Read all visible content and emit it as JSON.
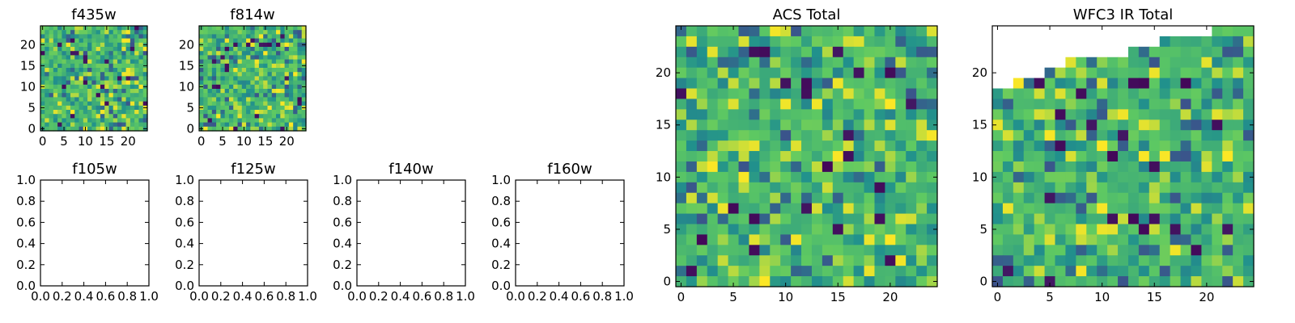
{
  "colormap": [
    "#440154",
    "#3b528b",
    "#21918c",
    "#5ec962",
    "#fde725"
  ],
  "chart_data": [
    {
      "type": "heatmap",
      "title": "f435w",
      "grid": [
        25,
        25
      ],
      "xlim": [
        -0.5,
        24.5
      ],
      "ylim": [
        -0.5,
        24.5
      ],
      "xticks": [
        "0",
        "5",
        "10",
        "15",
        "20"
      ],
      "yticks": [
        "0",
        "5",
        "10",
        "15",
        "20"
      ],
      "value_range": [
        0,
        1
      ],
      "content": "25x25 pixel intensity image, mostly mid-green/yellow-green with scattered dark purple and yellow pixels"
    },
    {
      "type": "heatmap",
      "title": "f814w",
      "grid": [
        25,
        25
      ],
      "xlim": [
        -0.5,
        24.5
      ],
      "ylim": [
        -0.5,
        24.5
      ],
      "xticks": [
        "0",
        "5",
        "10",
        "15",
        "20"
      ],
      "yticks": [
        "0",
        "5",
        "10",
        "15",
        "20"
      ],
      "value_range": [
        0,
        1
      ],
      "content": "25x25 pixel intensity image, mostly mid-green/yellow-green with scattered dark purple and yellow pixels"
    },
    {
      "type": "line",
      "title": "f105w",
      "xlim": [
        0,
        1
      ],
      "ylim": [
        0,
        1
      ],
      "xticks": [
        "0.0",
        "0.2",
        "0.4",
        "0.6",
        "0.8",
        "1.0"
      ],
      "yticks": [
        "0.0",
        "0.2",
        "0.4",
        "0.6",
        "0.8",
        "1.0"
      ],
      "series": []
    },
    {
      "type": "line",
      "title": "f125w",
      "xlim": [
        0,
        1
      ],
      "ylim": [
        0,
        1
      ],
      "xticks": [
        "0.0",
        "0.2",
        "0.4",
        "0.6",
        "0.8",
        "1.0"
      ],
      "yticks": [
        "0.0",
        "0.2",
        "0.4",
        "0.6",
        "0.8",
        "1.0"
      ],
      "series": []
    },
    {
      "type": "line",
      "title": "f140w",
      "xlim": [
        0,
        1
      ],
      "ylim": [
        0,
        1
      ],
      "xticks": [
        "0.0",
        "0.2",
        "0.4",
        "0.6",
        "0.8",
        "1.0"
      ],
      "yticks": [
        "0.0",
        "0.2",
        "0.4",
        "0.6",
        "0.8",
        "1.0"
      ],
      "series": []
    },
    {
      "type": "line",
      "title": "f160w",
      "xlim": [
        0,
        1
      ],
      "ylim": [
        0,
        1
      ],
      "xticks": [
        "0.0",
        "0.2",
        "0.4",
        "0.6",
        "0.8",
        "1.0"
      ],
      "yticks": [
        "0.0",
        "0.2",
        "0.4",
        "0.6",
        "0.8",
        "1.0"
      ],
      "series": []
    },
    {
      "type": "heatmap",
      "title": "ACS Total",
      "grid": [
        25,
        25
      ],
      "xlim": [
        -0.5,
        24.5
      ],
      "ylim": [
        -0.5,
        24.5
      ],
      "xticks": [
        "0",
        "5",
        "10",
        "15",
        "20"
      ],
      "yticks": [
        "0",
        "5",
        "10",
        "15",
        "20"
      ],
      "value_range": [
        0,
        1
      ],
      "content": "25x25 pixel intensity image, mostly green/yellow-green with scattered dark purple, teal and yellow pixels"
    },
    {
      "type": "heatmap",
      "title": "WFC3 IR Total",
      "grid": [
        25,
        25
      ],
      "xlim": [
        -0.5,
        24.5
      ],
      "ylim": [
        -0.5,
        24.5
      ],
      "xticks": [
        "0",
        "5",
        "10",
        "15",
        "20"
      ],
      "yticks": [
        "0",
        "5",
        "10",
        "15",
        "20"
      ],
      "value_range": [
        0,
        1
      ],
      "masked_top_rows": [
        6,
        6,
        5,
        5,
        5,
        4,
        4,
        3,
        3,
        3,
        3,
        3,
        3,
        2,
        2,
        2,
        1,
        1,
        1,
        1,
        1,
        0,
        0,
        0,
        0
      ],
      "content": "25x25 pixel intensity image with an empty (white) stepped region along the top edge, mostly green with scattered dark purple and yellow pixels"
    }
  ]
}
